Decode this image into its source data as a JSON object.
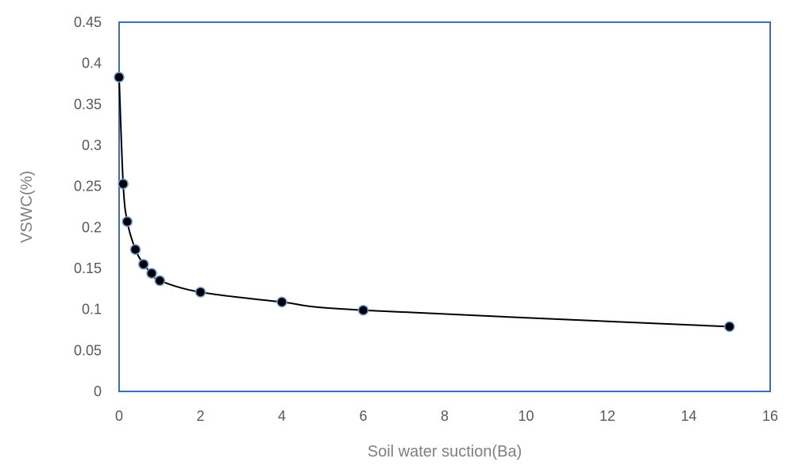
{
  "chart_data": {
    "type": "scatter",
    "title": "",
    "xlabel": "Soil water suction(Ba)",
    "ylabel": "VSWC(%)",
    "xlim": [
      0,
      16
    ],
    "ylim": [
      0,
      0.45
    ],
    "x_ticks": [
      0,
      2,
      4,
      6,
      8,
      10,
      12,
      14,
      16
    ],
    "y_ticks": [
      "0",
      "0.05",
      "0.1",
      "0.15",
      "0.2",
      "0.25",
      "0.3",
      "0.35",
      "0.4",
      "0.45"
    ],
    "grid": false,
    "legend": "none",
    "smooth_line": true,
    "series": [
      {
        "x": [
          0,
          0.1,
          0.2,
          0.4,
          0.6,
          0.8,
          1,
          2,
          4,
          6,
          15
        ],
        "y": [
          0.383,
          0.253,
          0.207,
          0.173,
          0.155,
          0.144,
          0.135,
          0.121,
          0.109,
          0.099,
          0.079
        ]
      }
    ],
    "colors": {
      "frame": "#3a6fb5",
      "marker_fill": "#000000",
      "marker_edge": "#6f9fd8",
      "line": "#000000",
      "tick_text": "#595959",
      "title_text": "#7f7f7f"
    }
  }
}
